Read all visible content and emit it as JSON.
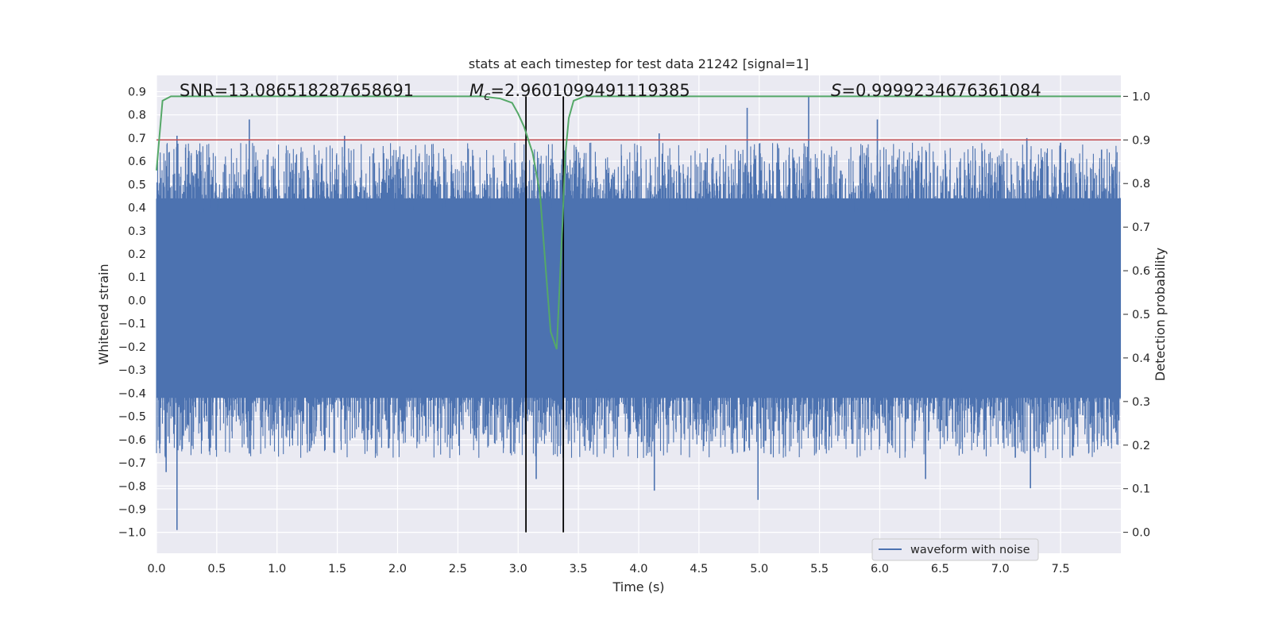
{
  "chart_data": {
    "type": "line",
    "title": "stats at each timestep for test data 21242 [signal=1]",
    "xlabel": "Time (s)",
    "ylabel": "Whitened strain",
    "y2label": "Detection probability",
    "xlim": [
      0.0,
      8.0
    ],
    "ylim": [
      -1.09,
      0.97
    ],
    "y2lim": [
      -0.048,
      1.048
    ],
    "x_ticks": [
      "0.0",
      "0.5",
      "1.0",
      "1.5",
      "2.0",
      "2.5",
      "3.0",
      "3.5",
      "4.0",
      "4.5",
      "5.0",
      "5.5",
      "6.0",
      "6.5",
      "7.0",
      "7.5"
    ],
    "y_ticks": [
      "0.9",
      "0.8",
      "0.7",
      "0.6",
      "0.5",
      "0.4",
      "0.3",
      "0.2",
      "0.1",
      "0.0",
      "−0.1",
      "−0.2",
      "−0.3",
      "−0.4",
      "−0.5",
      "−0.6",
      "−0.7",
      "−0.8",
      "−0.9",
      "−1.0"
    ],
    "y2_ticks": [
      "1.0",
      "0.9",
      "0.8",
      "0.7",
      "0.6",
      "0.5",
      "0.4",
      "0.3",
      "0.2",
      "0.1",
      "0.0"
    ],
    "grid": true,
    "legend": {
      "placement": "lower-right",
      "entries": [
        "waveform with noise"
      ]
    },
    "annotations": {
      "snr": "SNR=13.086518287658691",
      "mc_symbol": "M",
      "mc_sub": "c",
      "mc_value": "=2.9601099491119385",
      "s_symbol": "S",
      "s_value": "=0.9999234676361084"
    },
    "threshold": {
      "value": 0.9,
      "axis": "right",
      "color": "#c44e52"
    },
    "vlines": [
      3.065,
      3.375
    ],
    "series": [
      {
        "name": "waveform with noise",
        "axis": "left",
        "color": "#4c72b0",
        "x_range": [
          0.0,
          8.0
        ],
        "core_envelope": [
          -0.42,
          0.44
        ],
        "peak_spikes": [
          {
            "x": 0.17,
            "y": -0.99
          },
          {
            "x": 0.17,
            "y": 0.71
          },
          {
            "x": 0.08,
            "y": -0.74
          },
          {
            "x": 0.77,
            "y": 0.78
          },
          {
            "x": 0.77,
            "y": -0.66
          },
          {
            "x": 1.27,
            "y": -0.65
          },
          {
            "x": 1.56,
            "y": 0.71
          },
          {
            "x": 2.05,
            "y": 0.63
          },
          {
            "x": 3.15,
            "y": -0.77
          },
          {
            "x": 4.13,
            "y": -0.82
          },
          {
            "x": 4.17,
            "y": 0.72
          },
          {
            "x": 4.9,
            "y": 0.83
          },
          {
            "x": 4.99,
            "y": -0.86
          },
          {
            "x": 5.41,
            "y": 0.88
          },
          {
            "x": 5.98,
            "y": 0.78
          },
          {
            "x": 6.38,
            "y": -0.77
          },
          {
            "x": 7.25,
            "y": -0.81
          },
          {
            "x": 7.22,
            "y": 0.7
          },
          {
            "x": 7.5,
            "y": 0.68
          },
          {
            "x": 7.84,
            "y": 0.65
          }
        ]
      },
      {
        "name": "detection probability",
        "axis": "right",
        "color": "#55a868",
        "points": [
          [
            0.0,
            0.83
          ],
          [
            0.05,
            0.99
          ],
          [
            0.12,
            1.0
          ],
          [
            1.0,
            1.0
          ],
          [
            2.0,
            1.0
          ],
          [
            2.7,
            1.0
          ],
          [
            2.85,
            0.995
          ],
          [
            2.95,
            0.985
          ],
          [
            3.0,
            0.96
          ],
          [
            3.05,
            0.93
          ],
          [
            3.12,
            0.87
          ],
          [
            3.18,
            0.78
          ],
          [
            3.23,
            0.6
          ],
          [
            3.27,
            0.46
          ],
          [
            3.32,
            0.42
          ],
          [
            3.37,
            0.72
          ],
          [
            3.39,
            0.86
          ],
          [
            3.42,
            0.95
          ],
          [
            3.46,
            0.99
          ],
          [
            3.55,
            1.0
          ],
          [
            5.0,
            1.0
          ],
          [
            8.0,
            1.0
          ]
        ]
      }
    ]
  }
}
